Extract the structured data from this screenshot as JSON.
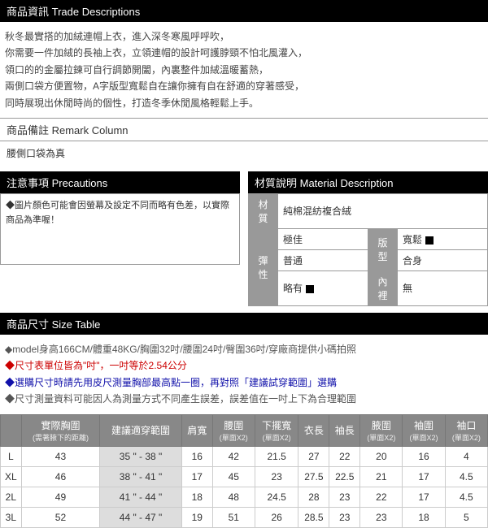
{
  "sections": {
    "trade_desc_header": "商品資訊 Trade Descriptions",
    "remark_header": "商品備註 Remark Column",
    "precautions_header": "注意事項 Precautions",
    "material_header": "材質說明 Material Description",
    "size_header": "商品尺寸 Size Table"
  },
  "trade_desc_lines": [
    "秋冬最實搭的加絨連帽上衣，進入深冬寒風呼呼吹，",
    "你需要一件加絨的長袖上衣，立領連帽的設計呵護脖頸不怕北風灌入，",
    "領口的的金屬拉鍊可自行調節開闔，內裏整件加絨溫暖蓄熱，",
    "兩側口袋方便置物，A字版型寬鬆自在讓你擁有自在舒適的穿著感受，",
    "同時展現出休閒時尚的個性，打造冬季休閒風格輕鬆上手。"
  ],
  "remark_body": "腰側口袋為真",
  "precautions_body": "◆圖片顏色可能會因螢幕及設定不同而略有色差，以實際商品為準喔！",
  "material": {
    "label_material": "材質",
    "value_material": "純棉混紡複合絨",
    "label_elastic": "彈性",
    "elastic_opts": [
      "極佳",
      "普通",
      "略有"
    ],
    "elastic_checked_index": 2,
    "label_fit": "版型",
    "fit_opts": [
      "寬鬆",
      "合身"
    ],
    "fit_checked_index": 0,
    "label_lining": "內裡",
    "lining_value": "無"
  },
  "size_notes": [
    "◆model身高166CM/體重48KG/胸圍32吋/腰圍24吋/臀圍36吋/穿廠商提供小碼拍照",
    "◆尺寸表單位皆為\"吋\"，一吋等於2.54公分",
    "◆選購尺寸時請先用皮尺測量胸部最高點一圈，再對照「建議試穿範圍」選購",
    "◆尺寸測量資料可能因人為測量方式不同產生誤差，誤差值在一吋上下為合理範圍"
  ],
  "size_table": {
    "headers": [
      {
        "main": "",
        "sub": ""
      },
      {
        "main": "實際胸圍",
        "sub": "(需著腋下的距離)"
      },
      {
        "main": "建議適穿範圍",
        "sub": ""
      },
      {
        "main": "肩寬",
        "sub": ""
      },
      {
        "main": "腰圍",
        "sub": "(單面X2)"
      },
      {
        "main": "下擺寬",
        "sub": "(單面X2)"
      },
      {
        "main": "衣長",
        "sub": ""
      },
      {
        "main": "袖長",
        "sub": ""
      },
      {
        "main": "腋圍",
        "sub": "(單面X2)"
      },
      {
        "main": "袖圍",
        "sub": "(單面X2)"
      },
      {
        "main": "袖口",
        "sub": "(單面X2)"
      }
    ],
    "rows": [
      [
        "L",
        "43",
        "35 \" - 38 \"",
        "16",
        "42",
        "21.5",
        "27",
        "22",
        "20",
        "16",
        "4"
      ],
      [
        "XL",
        "46",
        "38 \" - 41 \"",
        "17",
        "45",
        "23",
        "27.5",
        "22.5",
        "21",
        "17",
        "4.5"
      ],
      [
        "2L",
        "49",
        "41 \" - 44 \"",
        "18",
        "48",
        "24.5",
        "28",
        "23",
        "22",
        "17",
        "4.5"
      ],
      [
        "3L",
        "52",
        "44 \" - 47 \"",
        "19",
        "51",
        "26",
        "28.5",
        "23",
        "23",
        "18",
        "5"
      ]
    ],
    "shaded_col_index": 2
  }
}
